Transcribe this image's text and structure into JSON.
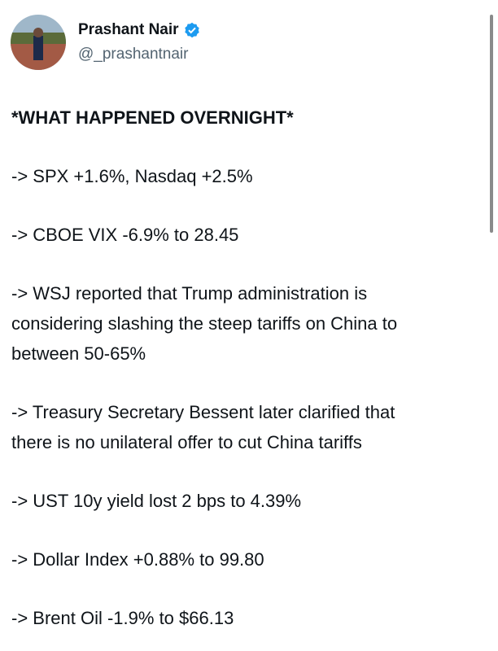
{
  "header": {
    "name": "Prashant Nair",
    "handle": "@_prashantnair"
  },
  "body": {
    "title": "*WHAT HAPPENED OVERNIGHT*",
    "paragraphs": [
      [
        "-> SPX +1.6%, Nasdaq +2.5%"
      ],
      [
        "-> CBOE VIX -6.9% to 28.45"
      ],
      [
        "-> WSJ reported that Trump administration is",
        "considering slashing the steep tariffs on China to",
        "between 50-65%"
      ],
      [
        "-> Treasury Secretary Bessent later clarified that",
        "there is no unilateral offer to cut China tariffs"
      ],
      [
        "-> UST 10y yield lost 2 bps to 4.39%"
      ],
      [
        "-> Dollar Index +0.88% to 99.80"
      ],
      [
        "-> Brent Oil -1.9% to $66.13"
      ]
    ]
  }
}
